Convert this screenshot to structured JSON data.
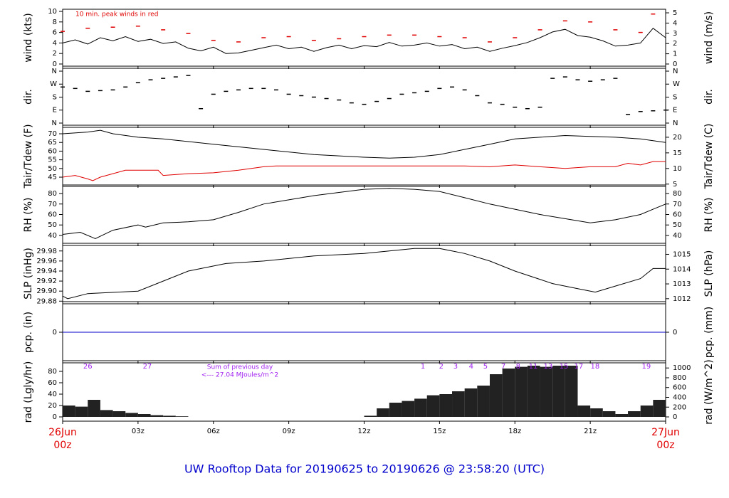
{
  "title": "UW Rooftop Data for 20190625  to  20190626 @ 23:58:20  (UTC)",
  "chart_data": [
    {
      "type": "line",
      "ylabel": "wind (kts)",
      "y2label": "wind (m/s)",
      "annotation": "10 min. peak winds in red",
      "xlim": [
        0,
        24
      ],
      "ylim": [
        -0.41,
        10.41
      ],
      "yticks": [
        0,
        2,
        4,
        6,
        8,
        10
      ],
      "y2lim": [
        -0.21,
        5.35
      ],
      "y2ticks": [
        0,
        1,
        2,
        3,
        4,
        5
      ],
      "series": [
        {
          "color": "#000000",
          "style": "line",
          "x": [
            0,
            0.5,
            1,
            1.5,
            2,
            2.5,
            3,
            3.5,
            4,
            4.5,
            5,
            5.5,
            6,
            6.5,
            7,
            7.5,
            8,
            8.5,
            9,
            9.5,
            10,
            10.5,
            11,
            11.5,
            12,
            12.5,
            13,
            13.5,
            14,
            14.5,
            15,
            15.5,
            16,
            16.5,
            17,
            17.5,
            18,
            18.5,
            19,
            19.5,
            20,
            20.5,
            21,
            21.5,
            22,
            22.5,
            23,
            23.5,
            24
          ],
          "values": [
            4,
            4.6,
            3.8,
            5,
            4.4,
            5.2,
            4.3,
            4.7,
            3.9,
            4.2,
            3,
            2.5,
            3.2,
            2,
            2.1,
            2.6,
            3.1,
            3.6,
            2.9,
            3.2,
            2.4,
            3.1,
            3.6,
            2.9,
            3.5,
            3.3,
            4.1,
            3.4,
            3.6,
            4,
            3.4,
            3.7,
            2.9,
            3.2,
            2.4,
            3,
            3.5,
            4.1,
            5,
            6.1,
            6.6,
            5.4,
            5.1,
            4.4,
            3.4,
            3.6,
            4,
            6.8,
            5
          ]
        },
        {
          "color": "#e00000",
          "style": "dash",
          "x": [
            0,
            1,
            2,
            3,
            4,
            5,
            6,
            7,
            8,
            9,
            10,
            11,
            12,
            13,
            14,
            15,
            16,
            17,
            18,
            19,
            20,
            21,
            22,
            23,
            23.5
          ],
          "values": [
            6.2,
            6.8,
            7,
            7.2,
            6.5,
            5.8,
            4.5,
            4.2,
            5,
            5.2,
            4.5,
            4.8,
            5.2,
            5.5,
            5.5,
            5.2,
            5,
            4.2,
            5,
            6.5,
            8.2,
            8,
            6.5,
            6,
            9.5
          ]
        }
      ]
    },
    {
      "type": "scatter",
      "ylabel": "dir.",
      "y2label": "dir.",
      "xlim": [
        0,
        24
      ],
      "ylim": [
        -14.8,
        379.7
      ],
      "yticks": [
        {
          "value": 0,
          "label": "N"
        },
        {
          "value": 90,
          "label": "E"
        },
        {
          "value": 180,
          "label": "S"
        },
        {
          "value": 270,
          "label": "W"
        },
        {
          "value": 360,
          "label": "N"
        }
      ],
      "y2lim": [
        -14.8,
        379.7
      ],
      "y2ticks": [
        {
          "value": 0,
          "label": "N"
        },
        {
          "value": 90,
          "label": "E"
        },
        {
          "value": 180,
          "label": "S"
        },
        {
          "value": 270,
          "label": "W"
        },
        {
          "value": 360,
          "label": "N"
        }
      ],
      "series": [
        {
          "color": "#000000",
          "style": "dash",
          "x": [
            0,
            0.5,
            1,
            1.5,
            2,
            2.5,
            3,
            3.5,
            4,
            4.5,
            5,
            5.5,
            6,
            6.5,
            7,
            7.5,
            8,
            8.5,
            9,
            9.5,
            10,
            10.5,
            11,
            11.5,
            12,
            12.5,
            13,
            13.5,
            14,
            14.5,
            15,
            15.5,
            16,
            16.5,
            17,
            17.5,
            18,
            18.5,
            19,
            19.5,
            20,
            20.5,
            21,
            21.5,
            22,
            22.5,
            23,
            23.5,
            24
          ],
          "values": [
            250,
            240,
            220,
            225,
            230,
            250,
            280,
            300,
            310,
            320,
            330,
            100,
            200,
            220,
            230,
            240,
            240,
            230,
            200,
            190,
            180,
            170,
            160,
            140,
            130,
            150,
            170,
            200,
            210,
            220,
            240,
            250,
            230,
            190,
            140,
            130,
            110,
            100,
            110,
            310,
            320,
            300,
            290,
            300,
            310,
            60,
            80,
            85,
            90
          ]
        }
      ]
    },
    {
      "type": "line",
      "ylabel": "Tair/Tdew (F)",
      "y2label": "Tair/Tdew (C)",
      "xlim": [
        0,
        24
      ],
      "ylim": [
        40.5,
        73.7
      ],
      "yticks": [
        45,
        50,
        55,
        60,
        65,
        70
      ],
      "y2lim": [
        4.72,
        23.17
      ],
      "y2ticks": [
        5,
        10,
        15,
        20
      ],
      "series": [
        {
          "color": "#000000",
          "style": "line",
          "x": [
            0,
            1,
            1.5,
            2,
            3,
            4,
            6,
            8,
            10,
            12,
            13,
            14,
            15,
            16,
            17,
            18,
            19,
            20,
            21,
            22,
            23,
            24
          ],
          "values": [
            70,
            71,
            72,
            70,
            68,
            67,
            64,
            61,
            58,
            56.5,
            56,
            56.5,
            58,
            61,
            64,
            67,
            68,
            69,
            68.5,
            68,
            67,
            65
          ]
        },
        {
          "color": "#e00000",
          "style": "line",
          "x": [
            0,
            0.5,
            1,
            1.2,
            1.5,
            2,
            2.5,
            3.8,
            4,
            5,
            6,
            7,
            8,
            8.5,
            10,
            12,
            14,
            16,
            17,
            18,
            19,
            20,
            21,
            22,
            22.5,
            23,
            23.5,
            24
          ],
          "values": [
            45,
            46,
            44,
            43,
            45,
            47,
            49,
            49,
            46,
            47,
            47.5,
            49,
            51,
            51.5,
            51.5,
            51.5,
            51.5,
            51.5,
            51,
            52,
            51,
            50,
            51,
            51,
            53,
            52,
            54,
            54
          ]
        }
      ]
    },
    {
      "type": "line",
      "ylabel": "RH (%)",
      "y2label": "RH (%)",
      "xlim": [
        0,
        24
      ],
      "ylim": [
        32.5,
        86.8
      ],
      "yticks": [
        40,
        50,
        60,
        70,
        80
      ],
      "y2lim": [
        32.5,
        86.8
      ],
      "y2ticks": [
        40,
        50,
        60,
        70,
        80
      ],
      "series": [
        {
          "color": "#000000",
          "style": "line",
          "x": [
            0,
            0.7,
            1.3,
            2,
            3,
            3.3,
            4,
            5,
            6,
            7,
            8,
            9,
            10,
            11,
            12,
            13,
            14,
            15,
            16,
            17,
            18,
            19,
            20,
            21,
            22,
            23,
            23.5,
            24
          ],
          "values": [
            41,
            43,
            37,
            45,
            50,
            48,
            52,
            53,
            55,
            62,
            70,
            74,
            78,
            81,
            84,
            85,
            84,
            82,
            76,
            70,
            65,
            60,
            56,
            52,
            55,
            60,
            65,
            70
          ]
        }
      ]
    },
    {
      "type": "line",
      "ylabel": "SLP (inHg)",
      "y2label": "SLP (hPa)",
      "xlim": [
        0,
        24
      ],
      "ylim": [
        29.879,
        29.991
      ],
      "yticks": [
        29.88,
        {
          "value": 29.9,
          "label": "29.90"
        },
        29.92,
        29.94,
        29.96,
        29.98
      ],
      "y2lim": [
        1011.8,
        1015.6
      ],
      "y2ticks": [
        1012,
        1013,
        1014,
        1015
      ],
      "series": [
        {
          "color": "#000000",
          "style": "line",
          "x": [
            0,
            0.2,
            1,
            3,
            4,
            5,
            6.5,
            8,
            10,
            12,
            14,
            15,
            16,
            17,
            18,
            19.5,
            20.5,
            21.2,
            22,
            23,
            23.5,
            24
          ],
          "values": [
            29.89,
            29.885,
            29.895,
            29.9,
            29.92,
            29.94,
            29.955,
            29.96,
            29.97,
            29.975,
            29.985,
            29.985,
            29.975,
            29.96,
            29.94,
            29.915,
            29.905,
            29.898,
            29.91,
            29.925,
            29.945,
            29.945
          ]
        }
      ]
    },
    {
      "type": "line",
      "ylabel": "pcp. (in)",
      "y2label": "pcp. (mm)",
      "xlim": [
        0,
        24
      ],
      "ylim": [
        -1,
        1
      ],
      "yticks": [
        0
      ],
      "y2lim": [
        -1,
        1
      ],
      "y2ticks": [
        0
      ],
      "series": [
        {
          "color": "#0000cc",
          "style": "line",
          "x": [
            0,
            24
          ],
          "values": [
            0,
            0
          ]
        }
      ]
    },
    {
      "type": "bar",
      "ylabel": "rad (Lgly/hr)",
      "y2label": "rad (W/m^2)",
      "xlim": [
        0,
        24
      ],
      "ylim": [
        -7.5,
        95
      ],
      "yticks": [
        0,
        20,
        40,
        60,
        80
      ],
      "y2lim": [
        -87,
        1105
      ],
      "y2ticks": [
        0,
        200,
        400,
        600,
        800,
        1000
      ],
      "series": [
        {
          "color": "#222222",
          "style": "bar",
          "x": [
            0,
            0.5,
            1,
            1.5,
            2,
            2.5,
            3,
            3.5,
            4,
            4.5,
            12,
            12.5,
            13,
            13.5,
            14,
            14.5,
            15,
            15.5,
            16,
            16.5,
            17,
            17.5,
            18,
            18.5,
            19,
            19.5,
            20,
            20.5,
            21,
            21.5,
            22,
            22.5,
            23,
            23.5
          ],
          "values": [
            20,
            18,
            30,
            12,
            10,
            7,
            5,
            3,
            2,
            1,
            2,
            15,
            25,
            28,
            32,
            38,
            40,
            45,
            50,
            55,
            75,
            85,
            88,
            90,
            88,
            90,
            90,
            20,
            15,
            10,
            5,
            10,
            20,
            30
          ]
        }
      ],
      "annotations": [
        {
          "x": 1.0,
          "text": "26"
        },
        {
          "x": 3.37,
          "text": "27"
        },
        {
          "x": 14.34,
          "text": "1"
        },
        {
          "x": 15.07,
          "text": "2"
        },
        {
          "x": 15.64,
          "text": "3"
        },
        {
          "x": 16.26,
          "text": "4"
        },
        {
          "x": 16.83,
          "text": "5"
        },
        {
          "x": 17.54,
          "text": "7"
        },
        {
          "x": 18.13,
          "text": "8"
        },
        {
          "x": 18.73,
          "text": "11"
        },
        {
          "x": 19.32,
          "text": "13"
        },
        {
          "x": 19.95,
          "text": "15"
        },
        {
          "x": 20.54,
          "text": "17"
        },
        {
          "x": 21.19,
          "text": "18"
        },
        {
          "x": 23.23,
          "text": "19"
        }
      ],
      "note": [
        "Sum of previous day",
        "<--- 27.04 MJoules/m^2"
      ],
      "annotation_color": "#a020f0",
      "xticks": [
        {
          "value": 0,
          "label": "26Jun"
        },
        {
          "value": 3,
          "label": "03z"
        },
        {
          "value": 6,
          "label": "06z"
        },
        {
          "value": 9,
          "label": "09z"
        },
        {
          "value": 12,
          "label": "12z"
        },
        {
          "value": 15,
          "label": "15z"
        },
        {
          "value": 18,
          "label": "18z"
        },
        {
          "value": 21,
          "label": "21z"
        },
        {
          "value": 24,
          "label": "27Jun"
        }
      ],
      "xtick_sublabels": [
        "00z",
        "00z"
      ],
      "end_label_color": "#e00000"
    }
  ]
}
